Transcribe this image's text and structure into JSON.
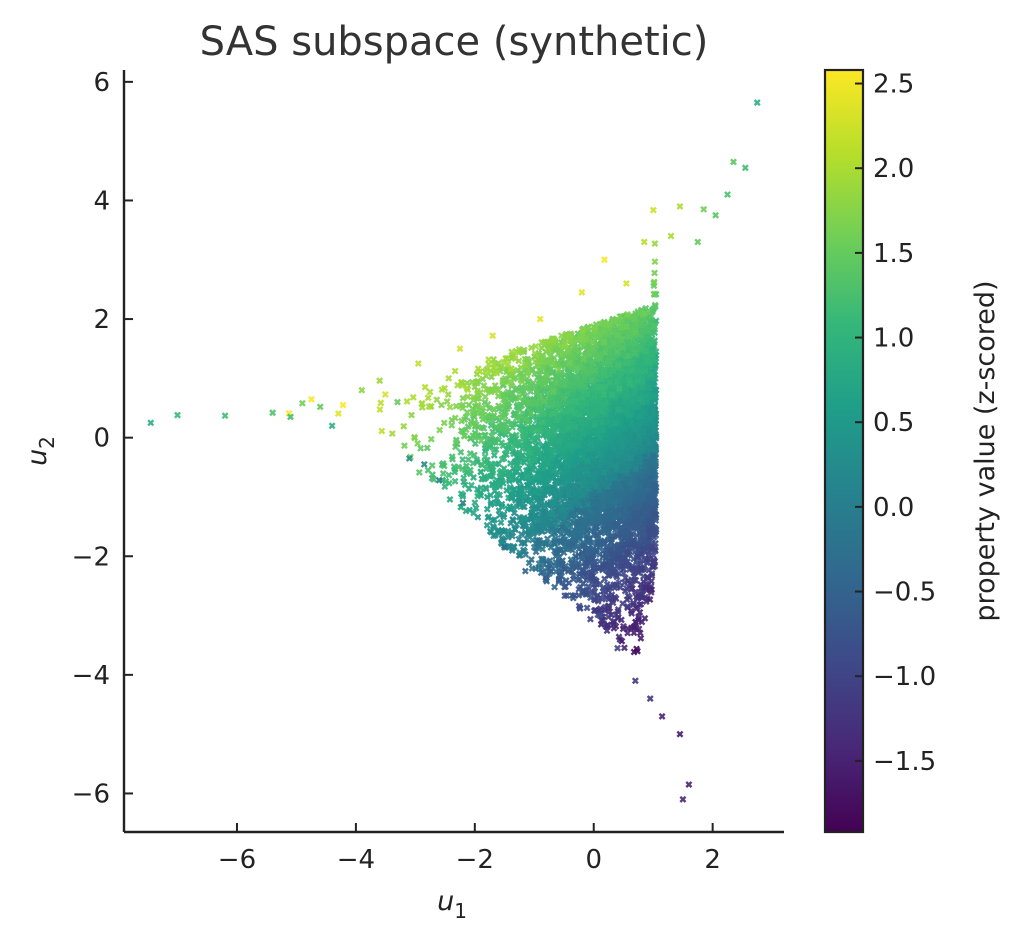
{
  "chart_data": {
    "type": "scatter",
    "title": "SAS subspace (synthetic)",
    "xlabel": "u",
    "xlabel_subscript": "1",
    "ylabel": "u",
    "ylabel_subscript": "2",
    "xlim": [
      -7.9,
      3.2
    ],
    "ylim": [
      -6.65,
      6.2
    ],
    "xticks": [
      -6,
      -4,
      -2,
      0,
      2
    ],
    "xtick_labels": [
      "−6",
      "−4",
      "−2",
      "0",
      "2"
    ],
    "yticks": [
      -6,
      -4,
      -2,
      0,
      2,
      4,
      6
    ],
    "ytick_labels": [
      "−6",
      "−4",
      "−2",
      "0",
      "2",
      "4",
      "6"
    ],
    "grid": false,
    "marker": "x",
    "colormap": "viridis",
    "colorbar": {
      "label": "property value (z-scored)",
      "range": [
        -1.92,
        2.58
      ],
      "ticks": [
        -1.5,
        -1.0,
        -0.5,
        0.0,
        0.5,
        1.0,
        1.5,
        2.0,
        2.5
      ],
      "tick_labels": [
        "−1.5",
        "−1.0",
        "−0.5",
        "0.0",
        "0.5",
        "1.0",
        "1.5",
        "2.0",
        "2.5"
      ]
    },
    "colors": {
      "viridis_stops": [
        "#440154",
        "#482878",
        "#3e4989",
        "#31688e",
        "#26828e",
        "#1f9e89",
        "#35b779",
        "#6ece58",
        "#b5de2b",
        "#fde725"
      ],
      "axis": "#222222",
      "title": "#333333"
    },
    "points": [
      {
        "x": -7.45,
        "y": 0.25,
        "c": 0.9
      },
      {
        "x": -7.0,
        "y": 0.38,
        "c": 1.1
      },
      {
        "x": -6.2,
        "y": 0.37,
        "c": 1.2
      },
      {
        "x": -5.4,
        "y": 0.42,
        "c": 1.3
      },
      {
        "x": -5.1,
        "y": 0.35,
        "c": 1.2
      },
      {
        "x": -4.9,
        "y": 0.58,
        "c": 1.6
      },
      {
        "x": -4.6,
        "y": 0.52,
        "c": 1.5
      },
      {
        "x": -4.4,
        "y": 0.2,
        "c": 0.9
      },
      {
        "x": -3.9,
        "y": 0.8,
        "c": 1.8
      },
      {
        "x": -3.6,
        "y": 0.96,
        "c": 1.9
      },
      {
        "x": -3.3,
        "y": 0.6,
        "c": 1.5
      },
      {
        "x": -3.1,
        "y": -0.35,
        "c": 0.3
      },
      {
        "x": -2.95,
        "y": 1.25,
        "c": 2.15
      },
      {
        "x": -2.85,
        "y": -0.45,
        "c": 0.2
      },
      {
        "x": -2.6,
        "y": -0.72,
        "c": 0.0
      },
      {
        "x": -2.25,
        "y": 1.5,
        "c": 2.25
      },
      {
        "x": -2.2,
        "y": -1.1,
        "c": -0.1
      },
      {
        "x": -1.7,
        "y": 1.72,
        "c": 2.3
      },
      {
        "x": -1.5,
        "y": -1.85,
        "c": -0.3
      },
      {
        "x": -1.15,
        "y": -2.25,
        "c": -0.5
      },
      {
        "x": -0.9,
        "y": 2.0,
        "c": 2.4
      },
      {
        "x": -0.75,
        "y": -2.2,
        "c": -0.5
      },
      {
        "x": -0.2,
        "y": 2.45,
        "c": 2.4
      },
      {
        "x": 0.18,
        "y": 3.0,
        "c": 2.55
      },
      {
        "x": 0.1,
        "y": -3.0,
        "c": -0.8
      },
      {
        "x": 0.4,
        "y": -3.55,
        "c": -1.0
      },
      {
        "x": 0.55,
        "y": 2.6,
        "c": 2.3
      },
      {
        "x": 0.7,
        "y": -4.1,
        "c": -1.2
      },
      {
        "x": 0.85,
        "y": 3.3,
        "c": 2.1
      },
      {
        "x": 0.95,
        "y": -4.4,
        "c": -1.3
      },
      {
        "x": 1.15,
        "y": -4.7,
        "c": -1.45
      },
      {
        "x": 1.3,
        "y": 3.4,
        "c": 2.0
      },
      {
        "x": 1.45,
        "y": -5.0,
        "c": -1.6
      },
      {
        "x": 1.45,
        "y": 3.9,
        "c": 2.0
      },
      {
        "x": 1.6,
        "y": -5.85,
        "c": -1.5
      },
      {
        "x": 1.5,
        "y": -6.1,
        "c": -1.4
      },
      {
        "x": 1.75,
        "y": 3.3,
        "c": 1.5
      },
      {
        "x": 1.85,
        "y": 3.85,
        "c": 1.6
      },
      {
        "x": 2.05,
        "y": 3.75,
        "c": 1.4
      },
      {
        "x": 2.25,
        "y": 4.1,
        "c": 1.3
      },
      {
        "x": 2.35,
        "y": 4.65,
        "c": 1.4
      },
      {
        "x": 2.55,
        "y": 4.55,
        "c": 1.2
      },
      {
        "x": 2.75,
        "y": 5.65,
        "c": 0.9
      }
    ],
    "bulk": {
      "count": 6500,
      "mean": [
        0.95,
        0.0
      ],
      "spread_scale": [
        2.1,
        1.85
      ],
      "color_model": "0.55*u2 - 0.38*(u1-1.2) + 0.1"
    }
  }
}
